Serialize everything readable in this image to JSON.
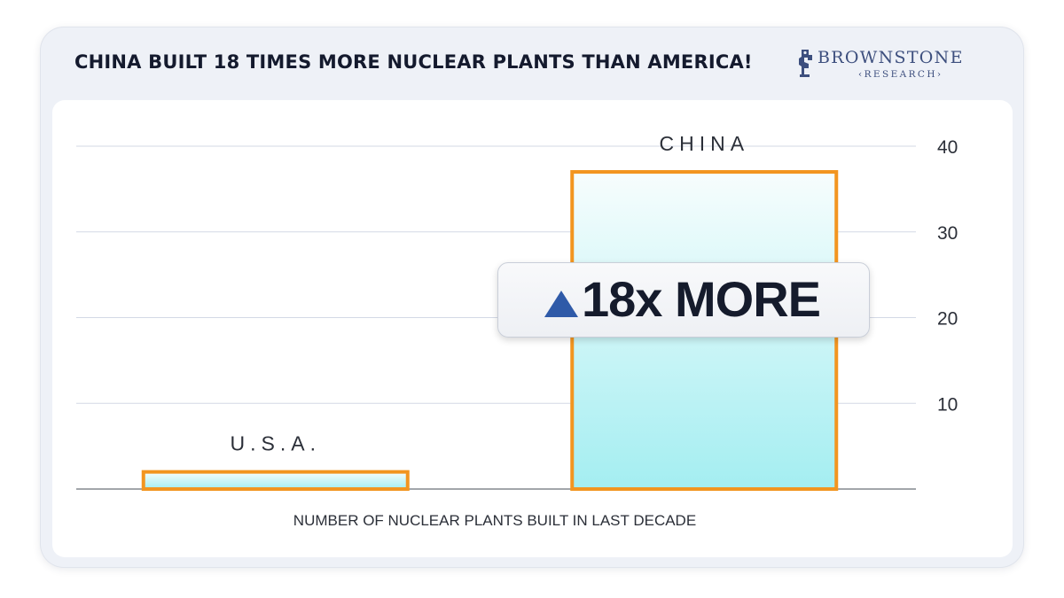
{
  "header": {
    "title": "CHINA BUILT 18 TIMES MORE NUCLEAR PLANTS THAN AMERICA!"
  },
  "logo": {
    "name": "BROWNSTONE",
    "subtitle": "‹RESEARCH›"
  },
  "callout": {
    "text": "18x MORE",
    "icon": "triangle-up-icon",
    "icon_color": "#2f5aa8"
  },
  "colors": {
    "bar_outline": "#f29520",
    "bar_fill_top": "#f7fdfd",
    "bar_fill_bottom": "#a4eef1",
    "gridline": "#d3d9e6",
    "baseline": "#6b7078",
    "text": "#2b2f38"
  },
  "chart_data": {
    "type": "bar",
    "categories": [
      "U.S.A.",
      "CHINA"
    ],
    "values": [
      2,
      37
    ],
    "xlabel": "NUMBER OF NUCLEAR PLANTS BUILT IN LAST DECADE",
    "ylabel": "",
    "ylim": [
      0,
      40
    ],
    "yticks": [
      10,
      20,
      30,
      40
    ],
    "yaxis_position": "right",
    "grid": true,
    "data_labels_above_bars": true
  }
}
